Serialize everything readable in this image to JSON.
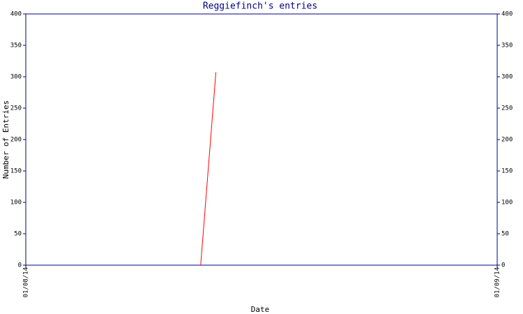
{
  "chart_data": {
    "type": "line",
    "title": "Reggiefinch's entries",
    "x_label": "Date",
    "y_label": "Number of Entries",
    "x": [
      11.5,
      12.5
    ],
    "series": [
      {
        "name": "entries",
        "color": "#ff0000",
        "values": [
          0,
          307
        ]
      }
    ],
    "xlim": [
      0,
      31
    ],
    "xticks": [
      {
        "value": 0,
        "label": "01/08/14"
      },
      {
        "value": 31,
        "label": "01/09/14"
      }
    ],
    "ylim": [
      0,
      400
    ],
    "yticks": [
      0,
      50,
      100,
      150,
      200,
      250,
      300,
      350,
      400
    ],
    "axis_color": "#000080"
  }
}
